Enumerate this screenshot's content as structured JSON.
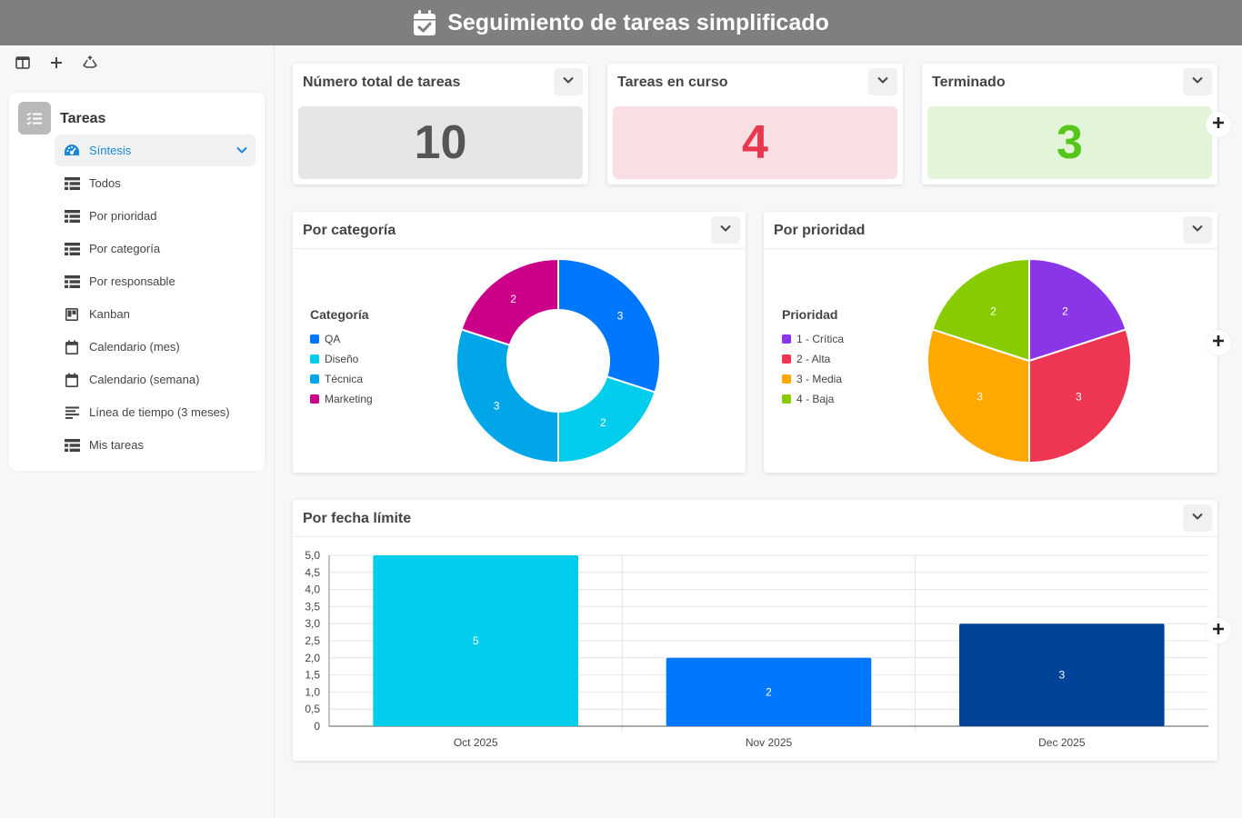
{
  "header": {
    "title": "Seguimiento de tareas simplificado",
    "icon": "calendar-check-icon"
  },
  "sidebar": {
    "tools": [
      {
        "name": "sidebar-toggle-button",
        "icon": "columns-icon"
      },
      {
        "name": "add-button",
        "icon": "plus-icon"
      },
      {
        "name": "recycle-button",
        "icon": "recycle-icon"
      }
    ],
    "section": {
      "label": "Tareas",
      "icon": "checklist-icon"
    },
    "items": [
      {
        "label": "Síntesis",
        "icon": "gauge-icon",
        "active": true
      },
      {
        "label": "Todos",
        "icon": "table-icon"
      },
      {
        "label": "Por prioridad",
        "icon": "table-icon"
      },
      {
        "label": "Por categoría",
        "icon": "table-icon"
      },
      {
        "label": "Por responsable",
        "icon": "table-icon"
      },
      {
        "label": "Kanban",
        "icon": "kanban-icon"
      },
      {
        "label": "Calendario (mes)",
        "icon": "calendar-icon"
      },
      {
        "label": "Calendario (semana)",
        "icon": "calendar-icon"
      },
      {
        "label": "Línea de tiempo (3 meses)",
        "icon": "timeline-icon"
      },
      {
        "label": "Mis tareas",
        "icon": "table-icon"
      }
    ]
  },
  "kpis": [
    {
      "title": "Número total de tareas",
      "value": "10",
      "bg": "#e6e6e6",
      "color": "#555555"
    },
    {
      "title": "Tareas en curso",
      "value": "4",
      "bg": "#f9dfe3",
      "color": "#e8384f"
    },
    {
      "title": "Terminado",
      "value": "3",
      "bg": "#e3f5d8",
      "color": "#55c51a"
    }
  ],
  "charts": {
    "category": {
      "title": "Por categoría",
      "legend_title": "Categoría",
      "chart_data": {
        "type": "pie",
        "variant": "donut",
        "labels": [
          "QA",
          "Diseño",
          "Técnica",
          "Marketing"
        ],
        "values": [
          3,
          2,
          3,
          2
        ],
        "colors": [
          "#0077ff",
          "#00cceb",
          "#00a6e8",
          "#cc0088"
        ]
      }
    },
    "priority": {
      "title": "Por prioridad",
      "legend_title": "Prioridad",
      "chart_data": {
        "type": "pie",
        "labels": [
          "1 - Crítica",
          "2 - Alta",
          "3 - Media",
          "4 - Baja"
        ],
        "values": [
          2,
          3,
          3,
          2
        ],
        "colors": [
          "#8b35e8",
          "#ee3653",
          "#ffa800",
          "#88cc00"
        ]
      }
    },
    "deadline": {
      "title": "Por fecha límite",
      "chart_data": {
        "type": "bar",
        "categories": [
          "Oct 2025",
          "Nov 2025",
          "Dec 2025"
        ],
        "values": [
          5,
          2,
          3
        ],
        "colors": [
          "#00cceb",
          "#0077ff",
          "#004499"
        ],
        "ylim": [
          0,
          5
        ],
        "yticks": [
          0,
          0.5,
          1,
          1.5,
          2,
          2.5,
          3,
          3.5,
          4,
          4.5,
          5
        ],
        "ytick_labels": [
          "0",
          "0,5",
          "1,0",
          "1,5",
          "2,0",
          "2,5",
          "3,0",
          "3,5",
          "4,0",
          "4,5",
          "5,0"
        ],
        "grid": true
      }
    }
  }
}
